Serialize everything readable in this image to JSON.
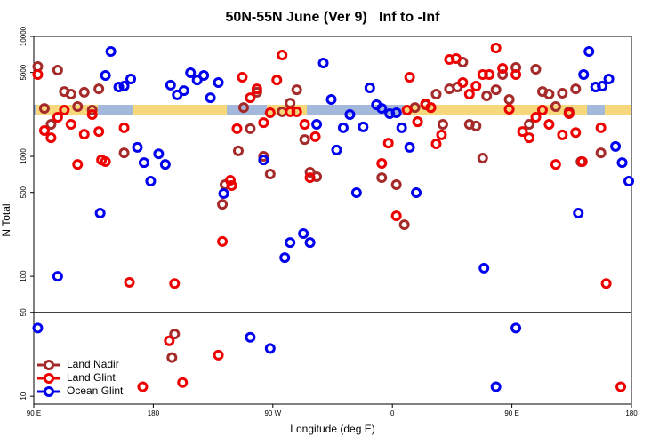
{
  "chart_data": {
    "type": "scatter",
    "title": "50N-55N June (Ver 9)   Inf to -Inf",
    "x_label": "Longitude (deg E)",
    "y_label": "N Total",
    "log_y": true,
    "split_at": 50,
    "legend": "lower left",
    "xlim": [
      90,
      540
    ],
    "xticks": [
      {
        "value": 90,
        "label": "90 E"
      },
      180,
      {
        "value": 270,
        "label": "90 W"
      },
      {
        "value": 360,
        "label": "0"
      },
      {
        "value": 450,
        "label": "90 E"
      },
      {
        "value": 540,
        "label": "180"
      }
    ],
    "ylim": [
      8.6,
      10000
    ],
    "yticks": [
      10,
      50,
      100,
      500,
      1000,
      5000,
      10000
    ],
    "series": [
      {
        "name": "Land Nadir",
        "color": "#a52a2a",
        "x": [
          93,
          108,
          98,
          103,
          113,
          118,
          123,
          128,
          134,
          139,
          158,
          232,
          234,
          244,
          248,
          253,
          258,
          263,
          268,
          277,
          283,
          288,
          294,
          298,
          303,
          352,
          363,
          369,
          377,
          379,
          385,
          389,
          393,
          398,
          403,
          409,
          413,
          418,
          423,
          428,
          431,
          438,
          443,
          448,
          453,
          463,
          468,
          473,
          478,
          483,
          488,
          493,
          498,
          502,
          517,
          194,
          196
        ],
        "values": [
          5600,
          5230,
          2510,
          1850,
          3470,
          3300,
          2600,
          3420,
          2430,
          3650,
          1070,
          398,
          580,
          1110,
          2550,
          1700,
          3420,
          1000,
          711,
          2350,
          2780,
          3590,
          1380,
          736,
          676,
          664,
          580,
          269,
          2550,
          1940,
          2690,
          2550,
          3300,
          1850,
          3650,
          3780,
          6100,
          1850,
          1790,
          967,
          3190,
          3590,
          4800,
          2980,
          5510,
          1850,
          5320,
          3470,
          3300,
          2600,
          3360,
          2350,
          3650,
          903,
          1070,
          21,
          33
        ]
      },
      {
        "name": "Land Glint",
        "color": "#ee0000",
        "x": [
          93,
          98,
          103,
          108,
          113,
          118,
          123,
          128,
          134,
          139,
          141,
          144,
          158,
          162,
          196,
          232,
          238,
          239,
          243,
          247,
          253,
          258,
          263,
          268,
          273,
          277,
          283,
          288,
          294,
          298,
          302,
          352,
          357,
          363,
          373,
          371,
          379,
          385,
          389,
          393,
          397,
          403,
          408,
          413,
          418,
          423,
          428,
          433,
          438,
          443,
          448,
          453,
          458,
          463,
          468,
          473,
          478,
          483,
          488,
          493,
          498,
          503,
          517,
          521,
          192,
          172,
          202,
          229,
          532
        ],
        "values": [
          4800,
          1640,
          1430,
          2120,
          2430,
          1850,
          857,
          1530,
          2230,
          1610,
          933,
          903,
          1730,
          89,
          87,
          195,
          631,
          570,
          1700,
          4560,
          3080,
          3650,
          1910,
          2310,
          4330,
          6990,
          2350,
          2350,
          1850,
          664,
          1460,
          873,
          1290,
          319,
          4560,
          2430,
          1940,
          2740,
          2550,
          1270,
          1510,
          6420,
          6530,
          4120,
          3300,
          3850,
          4800,
          4800,
          8010,
          5410,
          2470,
          4800,
          1610,
          1430,
          2120,
          2430,
          1850,
          857,
          1510,
          2270,
          1580,
          903,
          1730,
          87,
          29,
          12,
          13,
          22,
          12
        ]
      },
      {
        "name": "Ocean Glint",
        "color": "#0000ee",
        "x": [
          108,
          140,
          144,
          148,
          154,
          158,
          163,
          168,
          173,
          178,
          184,
          189,
          193,
          198,
          203,
          208,
          213,
          218,
          223,
          229,
          233,
          263,
          279,
          283,
          293,
          298,
          303,
          308,
          314,
          318,
          323,
          328,
          333,
          338,
          343,
          348,
          352,
          358,
          363,
          367,
          373,
          378,
          429,
          500,
          504,
          508,
          513,
          518,
          523,
          528,
          533,
          538,
          93,
          253,
          268,
          438,
          453
        ],
        "values": [
          100,
          336,
          4720,
          7480,
          3780,
          3850,
          4410,
          1190,
          887,
          621,
          1050,
          857,
          3920,
          3250,
          3530,
          4970,
          4330,
          4720,
          3080,
          4120,
          489,
          933,
          143,
          191,
          227,
          191,
          1850,
          5990,
          2980,
          1130,
          1730,
          2230,
          497,
          1760,
          3720,
          2690,
          2510,
          2270,
          2310,
          1730,
          1190,
          497,
          117,
          336,
          4800,
          7480,
          3780,
          3850,
          4410,
          1210,
          887,
          621,
          37,
          31,
          25,
          12,
          37
        ]
      }
    ]
  }
}
